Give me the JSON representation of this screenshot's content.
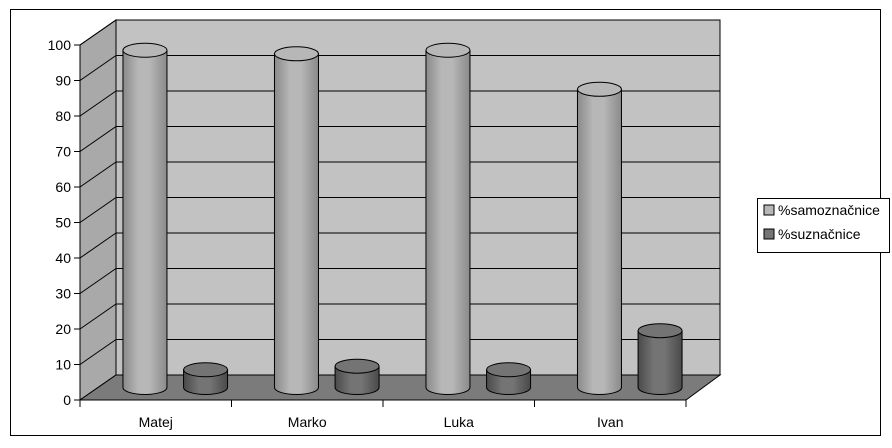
{
  "chart_data": {
    "type": "bar",
    "style": "3d-cylinder",
    "categories": [
      "Matej",
      "Marko",
      "Luka",
      "Ivan"
    ],
    "series": [
      {
        "name": "%samoznačnice",
        "values": [
          95,
          94,
          95,
          84
        ]
      },
      {
        "name": "%suznačnice",
        "values": [
          5,
          6,
          5,
          16
        ]
      }
    ],
    "ylim": [
      0,
      100
    ],
    "yticks": [
      0,
      10,
      20,
      30,
      40,
      50,
      60,
      70,
      80,
      90,
      100
    ],
    "grid": true,
    "legend": "right",
    "colors": {
      "series1": "#b7b7b7",
      "series2": "#747474",
      "back_wall": "#c2c2c2",
      "side_wall": "#a9a9a9",
      "floor": "#7b7b7b",
      "frame": "#000000"
    }
  }
}
